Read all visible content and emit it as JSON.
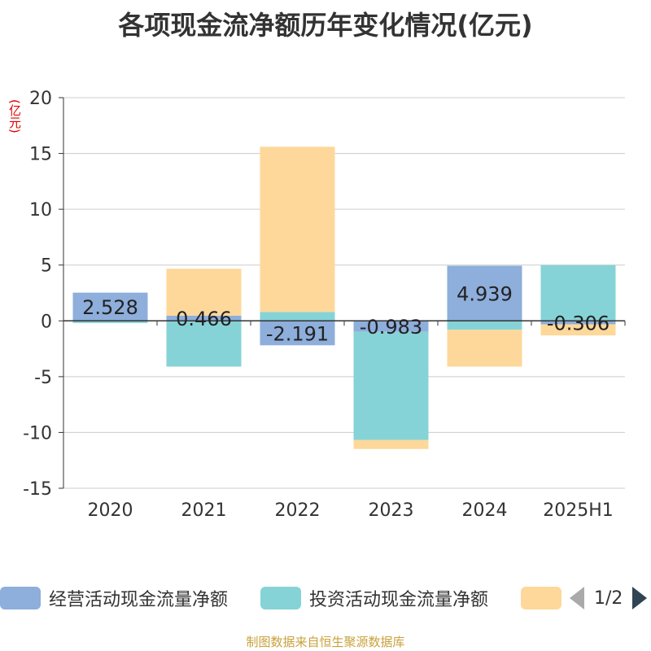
{
  "title": "各项现金流净额历年变化情况(亿元)",
  "unit_label": "(亿元)",
  "source": "制图数据来自恒生聚源数据库",
  "legend_pager": "1/2",
  "chart_data": {
    "type": "bar",
    "stacked": true,
    "categories": [
      "2020",
      "2021",
      "2022",
      "2023",
      "2024",
      "2025H1"
    ],
    "ylim": [
      -15,
      20
    ],
    "yticks": [
      -15,
      -10,
      -5,
      0,
      5,
      10,
      15,
      20
    ],
    "grid": true,
    "legend_position": "bottom",
    "series": [
      {
        "name": "经营活动现金流量净额",
        "color": "#8eaedb",
        "values": [
          2.528,
          0.466,
          -2.191,
          -0.983,
          4.939,
          -0.306
        ],
        "labels": [
          "2.528",
          "0.466",
          "-2.191",
          "-0.983",
          "4.939",
          "-0.306"
        ]
      },
      {
        "name": "投资活动现金流量净额",
        "color": "#86d3d7",
        "values": [
          -0.2,
          -4.1,
          0.8,
          -9.7,
          -0.8,
          5.0
        ]
      },
      {
        "name": "",
        "color": "#fdd89a",
        "values": [
          0.0,
          4.2,
          14.8,
          -0.8,
          -3.3,
          -1.0
        ]
      }
    ]
  }
}
